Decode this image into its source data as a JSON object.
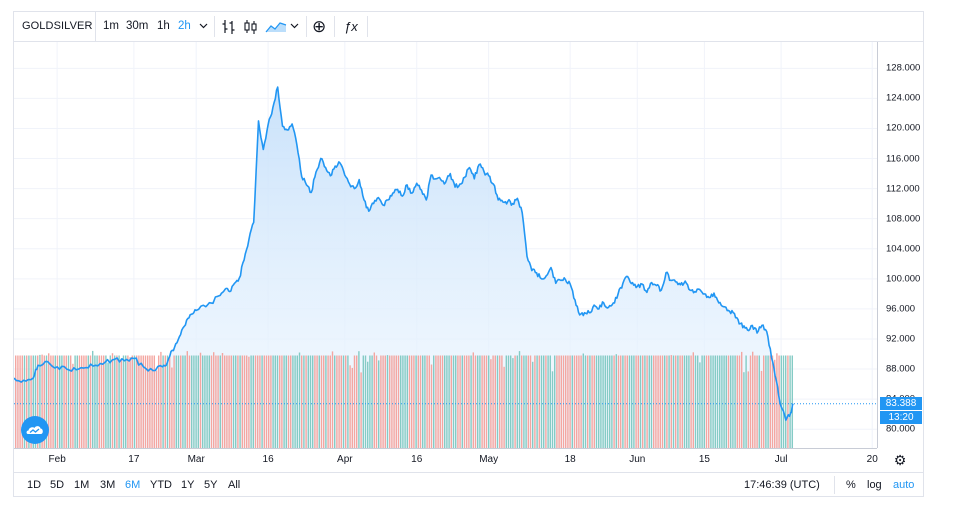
{
  "toolbar": {
    "symbol": "GOLDSILVER",
    "intervals": [
      "1m",
      "30m",
      "1h",
      "2h"
    ],
    "active_interval": "2h",
    "dropdown_icon": "chevron-down-icon",
    "tools": [
      "bar-style-icon",
      "candle-style-icon",
      "area-style-icon",
      "compare-add-icon",
      "indicators-fx-icon"
    ],
    "add_glyph": "⊕",
    "fx_glyph": "ƒx"
  },
  "bottom_bar": {
    "ranges": [
      "1D",
      "5D",
      "1M",
      "3M",
      "6M",
      "YTD",
      "1Y",
      "5Y",
      "All"
    ],
    "active_range": "6M",
    "time": "17:46:39 (UTC)",
    "percent_label": "%",
    "log_label": "log",
    "auto_label": "auto"
  },
  "colors": {
    "line": "#2196f3",
    "area_top": "#c4dffa",
    "area_bottom": "#f3f9ff",
    "volume_up": "#7ec8c2",
    "volume_down": "#f3a19c",
    "badge": "#2196f3",
    "grid": "#f0f3fa"
  },
  "chart_data": {
    "type": "area",
    "title": "GOLDSILVER",
    "last_price": "83.388",
    "countdown": "13:20",
    "y_axis": {
      "range": [
        77.5,
        131.5
      ],
      "ticks": [
        80,
        84,
        88,
        92,
        96,
        100,
        104,
        108,
        112,
        116,
        120,
        124,
        128
      ],
      "tick_labels": [
        "80.000",
        "84.000",
        "88.000",
        "92.000",
        "96.000",
        "100.000",
        "104.000",
        "108.000",
        "112.000",
        "116.000",
        "120.000",
        "124.000",
        "128.000"
      ]
    },
    "x_axis": {
      "range": [
        0,
        180
      ],
      "ticks": [
        {
          "label": "Feb",
          "day": 9
        },
        {
          "label": "17",
          "day": 25
        },
        {
          "label": "Mar",
          "day": 38
        },
        {
          "label": "16",
          "day": 53
        },
        {
          "label": "Apr",
          "day": 69
        },
        {
          "label": "16",
          "day": 84
        },
        {
          "label": "May",
          "day": 99
        },
        {
          "label": "18",
          "day": 116
        },
        {
          "label": "Jun",
          "day": 130
        },
        {
          "label": "15",
          "day": 144
        },
        {
          "label": "Jul",
          "day": 160
        },
        {
          "label": "20",
          "day": 179
        }
      ]
    },
    "series": [
      {
        "name": "GOLDSILVER",
        "points": [
          [
            0,
            86.8
          ],
          [
            2,
            86.5
          ],
          [
            4,
            86.8
          ],
          [
            5,
            88.5
          ],
          [
            7,
            89
          ],
          [
            9,
            88.3
          ],
          [
            11,
            88
          ],
          [
            13,
            87.9
          ],
          [
            15,
            88.2
          ],
          [
            17,
            88.5
          ],
          [
            19,
            88.9
          ],
          [
            21,
            89.3
          ],
          [
            23,
            89.1
          ],
          [
            25,
            89.4
          ],
          [
            27,
            88.3
          ],
          [
            29,
            87.8
          ],
          [
            31,
            88.3
          ],
          [
            32,
            88.9
          ],
          [
            33,
            90.5
          ],
          [
            34,
            91.5
          ],
          [
            35,
            93.2
          ],
          [
            36,
            94.5
          ],
          [
            37,
            95.3
          ],
          [
            38,
            95.8
          ],
          [
            40,
            96.3
          ],
          [
            41,
            96.8
          ],
          [
            43,
            97.8
          ],
          [
            44,
            98.6
          ],
          [
            45,
            98.3
          ],
          [
            46,
            99.4
          ],
          [
            47,
            100.1
          ],
          [
            48,
            102.5
          ],
          [
            49,
            105.2
          ],
          [
            50,
            107.5
          ],
          [
            51,
            121
          ],
          [
            52,
            117.2
          ],
          [
            53,
            120.5
          ],
          [
            54,
            122.8
          ],
          [
            55,
            125.5
          ],
          [
            56,
            120.3
          ],
          [
            57,
            119.8
          ],
          [
            58,
            120.6
          ],
          [
            59,
            117.8
          ],
          [
            60,
            113.6
          ],
          [
            61,
            112.5
          ],
          [
            62,
            111.5
          ],
          [
            63,
            114.2
          ],
          [
            64,
            116
          ],
          [
            65,
            114.8
          ],
          [
            66,
            113.7
          ],
          [
            67,
            115
          ],
          [
            68,
            115.4
          ],
          [
            69,
            113.8
          ],
          [
            70,
            112.6
          ],
          [
            71,
            112
          ],
          [
            72,
            113.2
          ],
          [
            73,
            110.5
          ],
          [
            74,
            109
          ],
          [
            75,
            110
          ],
          [
            76,
            110.8
          ],
          [
            77,
            109.8
          ],
          [
            78,
            110.5
          ],
          [
            79,
            111.4
          ],
          [
            80,
            111.9
          ],
          [
            81,
            111
          ],
          [
            82,
            112.5
          ],
          [
            83,
            111.4
          ],
          [
            84,
            112.7
          ],
          [
            85,
            111.8
          ],
          [
            86,
            110.5
          ],
          [
            87,
            113.8
          ],
          [
            88,
            113.3
          ],
          [
            89,
            113.2
          ],
          [
            90,
            112.8
          ],
          [
            91,
            114
          ],
          [
            92,
            112.2
          ],
          [
            93,
            112.6
          ],
          [
            94,
            113.5
          ],
          [
            95,
            114.8
          ],
          [
            96,
            113.3
          ],
          [
            97,
            115.2
          ],
          [
            98,
            114.3
          ],
          [
            99,
            113.7
          ],
          [
            100,
            112.6
          ],
          [
            101,
            110.5
          ],
          [
            102,
            110.2
          ],
          [
            103,
            110.3
          ],
          [
            104,
            110
          ],
          [
            105,
            110.7
          ],
          [
            106,
            108.8
          ],
          [
            107,
            103
          ],
          [
            108,
            101.1
          ],
          [
            109,
            100.8
          ],
          [
            110,
            100
          ],
          [
            111,
            100.4
          ],
          [
            112,
            101.5
          ],
          [
            113,
            99.4
          ],
          [
            114,
            99.8
          ],
          [
            115,
            99.9
          ],
          [
            116,
            99.3
          ],
          [
            117,
            97.2
          ],
          [
            118,
            95.2
          ],
          [
            119,
            95.5
          ],
          [
            120,
            95.5
          ],
          [
            121,
            96.5
          ],
          [
            122,
            96
          ],
          [
            123,
            96.8
          ],
          [
            124,
            96.2
          ],
          [
            125,
            96.8
          ],
          [
            126,
            98
          ],
          [
            127,
            99.4
          ],
          [
            128,
            100.3
          ],
          [
            129,
            99.5
          ],
          [
            130,
            99
          ],
          [
            131,
            99.3
          ],
          [
            132,
            98.2
          ],
          [
            133,
            99.5
          ],
          [
            134,
            99.1
          ],
          [
            135,
            98.5
          ],
          [
            136,
            100.8
          ],
          [
            137,
            99.8
          ],
          [
            138,
            99.6
          ],
          [
            139,
            99.2
          ],
          [
            140,
            99.7
          ],
          [
            141,
            98.5
          ],
          [
            142,
            98.3
          ],
          [
            143,
            98.6
          ],
          [
            144,
            98
          ],
          [
            145,
            97.5
          ],
          [
            146,
            98.1
          ],
          [
            147,
            96.8
          ],
          [
            148,
            96.3
          ],
          [
            149,
            95.8
          ],
          [
            150,
            95.5
          ],
          [
            151,
            94.6
          ],
          [
            152,
            93.5
          ],
          [
            153,
            93.2
          ],
          [
            154,
            93.8
          ],
          [
            155,
            92.8
          ],
          [
            156,
            93.8
          ],
          [
            157,
            93
          ],
          [
            158,
            89.5
          ],
          [
            159,
            86.5
          ],
          [
            160,
            83
          ],
          [
            161,
            81.2
          ],
          [
            162,
            82.2
          ],
          [
            162.5,
            83.388
          ]
        ]
      }
    ],
    "volume_band": {
      "top_value": 89.8,
      "bottom_value": 77.5
    }
  }
}
